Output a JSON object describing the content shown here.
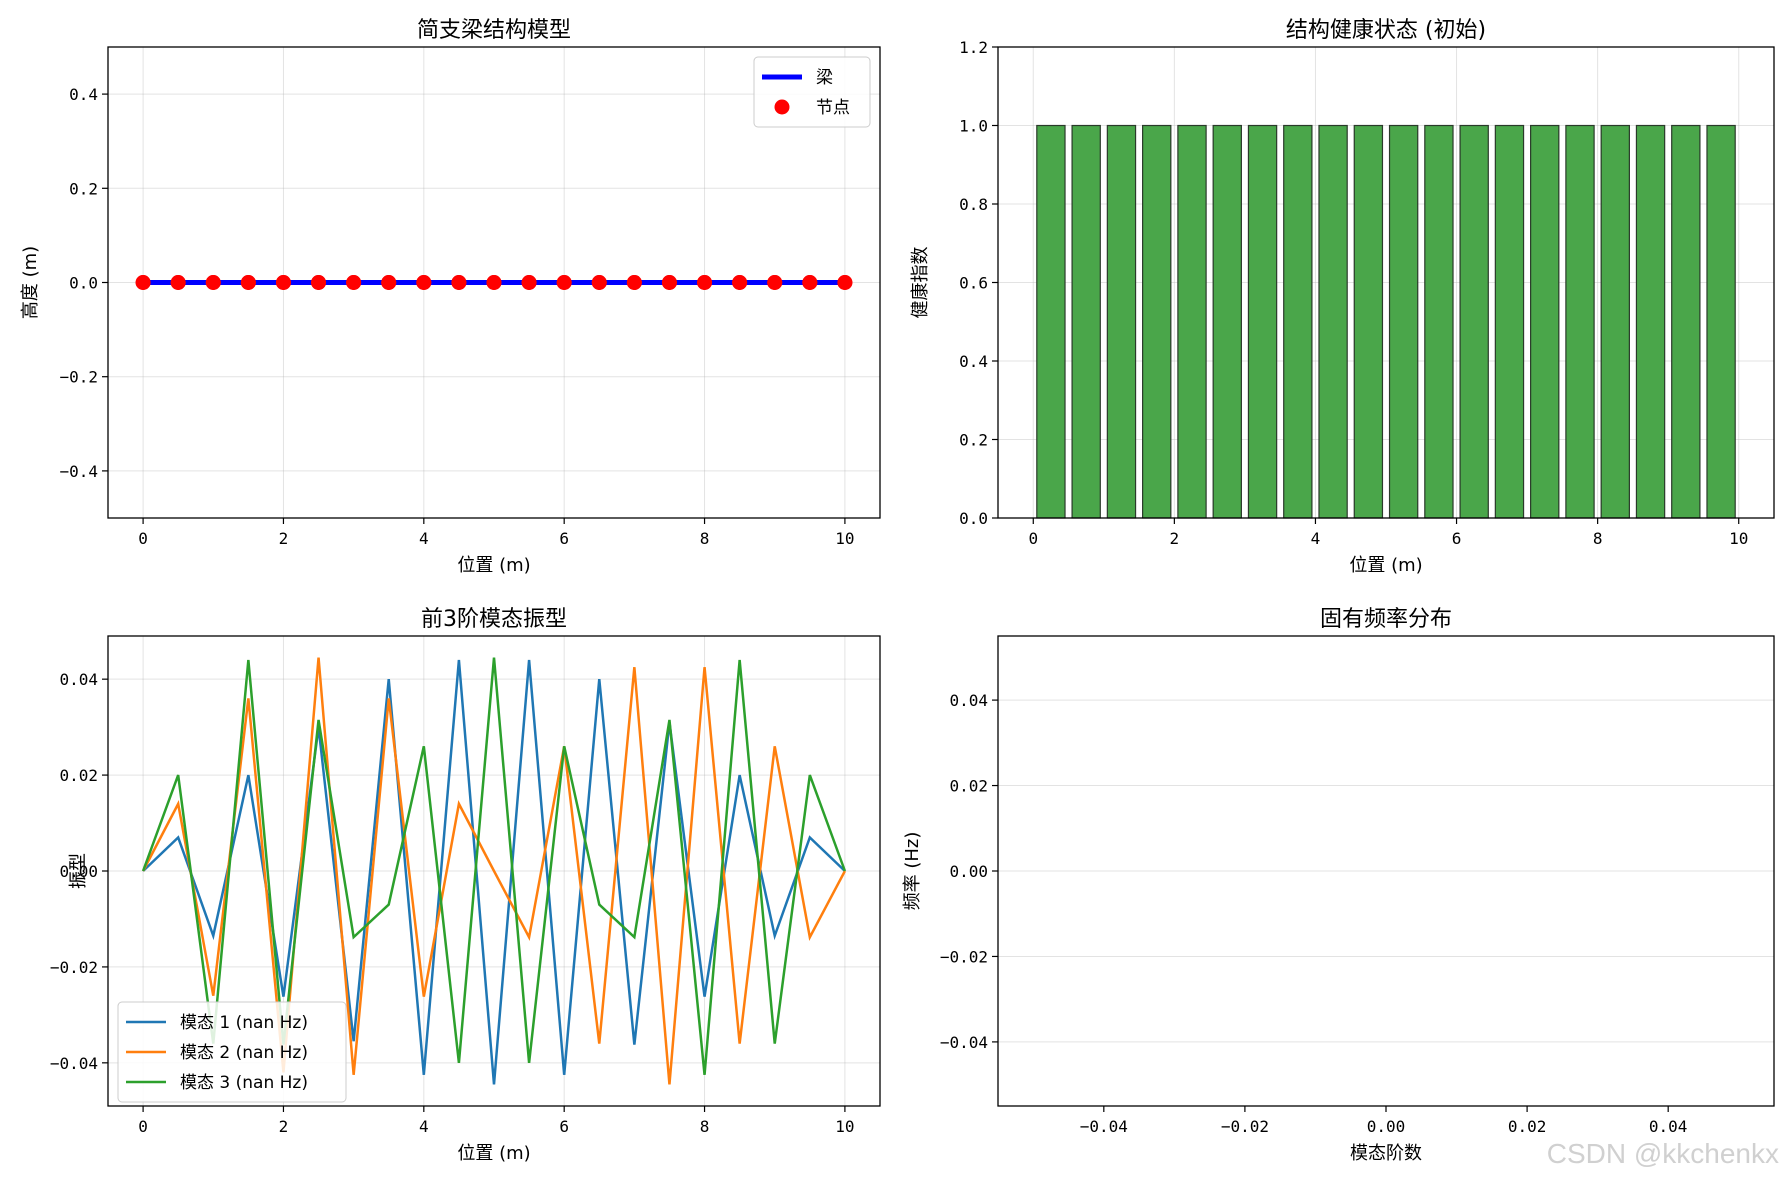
{
  "chart_data": [
    {
      "type": "line",
      "title": "简支梁结构模型",
      "xlabel": "位置 (m)",
      "ylabel": "高度 (m)",
      "xlim": [
        -0.5,
        10.5
      ],
      "ylim": [
        -0.5,
        0.5
      ],
      "xticks": [
        0,
        2,
        4,
        6,
        8,
        10
      ],
      "xtick_labels": [
        "0",
        "2",
        "4",
        "6",
        "8",
        "10"
      ],
      "yticks": [
        -0.4,
        -0.2,
        0.0,
        0.2,
        0.4
      ],
      "ytick_labels": [
        "−0.4",
        "−0.2",
        "0.0",
        "0.2",
        "0.4"
      ],
      "grid": true,
      "legend": "top-right",
      "series": [
        {
          "name": "梁",
          "kind": "line",
          "color": "#0000ff",
          "x": [
            0,
            10
          ],
          "y": [
            0,
            0
          ]
        },
        {
          "name": "节点",
          "kind": "scatter",
          "color": "#ff0000",
          "x": [
            0,
            0.5,
            1,
            1.5,
            2,
            2.5,
            3,
            3.5,
            4,
            4.5,
            5,
            5.5,
            6,
            6.5,
            7,
            7.5,
            8,
            8.5,
            9,
            9.5,
            10
          ],
          "y": [
            0,
            0,
            0,
            0,
            0,
            0,
            0,
            0,
            0,
            0,
            0,
            0,
            0,
            0,
            0,
            0,
            0,
            0,
            0,
            0,
            0
          ]
        }
      ]
    },
    {
      "type": "bar",
      "title": "结构健康状态 (初始)",
      "xlabel": "位置 (m)",
      "ylabel": "健康指数",
      "xlim": [
        -0.5,
        10.5
      ],
      "ylim": [
        0,
        1.2
      ],
      "xticks": [
        0,
        2,
        4,
        6,
        8,
        10
      ],
      "xtick_labels": [
        "0",
        "2",
        "4",
        "6",
        "8",
        "10"
      ],
      "yticks": [
        0.0,
        0.2,
        0.4,
        0.6,
        0.8,
        1.0,
        1.2
      ],
      "ytick_labels": [
        "0.0",
        "0.2",
        "0.4",
        "0.6",
        "0.8",
        "1.0",
        "1.2"
      ],
      "grid": true,
      "bar_color": "#4aa64a",
      "x": [
        0.25,
        0.75,
        1.25,
        1.75,
        2.25,
        2.75,
        3.25,
        3.75,
        4.25,
        4.75,
        5.25,
        5.75,
        6.25,
        6.75,
        7.25,
        7.75,
        8.25,
        8.75,
        9.25,
        9.75
      ],
      "values": [
        1,
        1,
        1,
        1,
        1,
        1,
        1,
        1,
        1,
        1,
        1,
        1,
        1,
        1,
        1,
        1,
        1,
        1,
        1,
        1
      ]
    },
    {
      "type": "line",
      "title": "前3阶模态振型",
      "xlabel": "位置 (m)",
      "ylabel": "振型",
      "xlim": [
        -0.5,
        10.5
      ],
      "ylim": [
        -0.049,
        0.049
      ],
      "xticks": [
        0,
        2,
        4,
        6,
        8,
        10
      ],
      "xtick_labels": [
        "0",
        "2",
        "4",
        "6",
        "8",
        "10"
      ],
      "yticks": [
        -0.04,
        -0.02,
        0.0,
        0.02,
        0.04
      ],
      "ytick_labels": [
        "−0.04",
        "−0.02",
        "0.00",
        "0.02",
        "0.04"
      ],
      "grid": true,
      "legend": "bottom-left",
      "x": [
        0,
        0.5,
        1,
        1.5,
        2,
        2.5,
        3,
        3.5,
        4,
        4.5,
        5,
        5.5,
        6,
        6.5,
        7,
        7.5,
        8,
        8.5,
        9,
        9.5,
        10
      ],
      "series": [
        {
          "name": "模态 1 (nan Hz)",
          "color": "#1f77b4",
          "values": [
            0,
            0.007,
            -0.0135,
            0.02,
            -0.0262,
            0.03,
            -0.0355,
            0.04,
            -0.0425,
            0.044,
            -0.0445,
            0.044,
            -0.0425,
            0.04,
            -0.0362,
            0.031,
            -0.0262,
            0.02,
            -0.0135,
            0.007,
            0
          ]
        },
        {
          "name": "模态 2 (nan Hz)",
          "color": "#ff7f0e",
          "values": [
            0,
            0.014,
            -0.026,
            0.036,
            -0.042,
            0.0445,
            -0.0425,
            0.036,
            -0.0262,
            0.014,
            0,
            -0.0138,
            0.026,
            -0.036,
            0.0425,
            -0.0445,
            0.0425,
            -0.036,
            0.026,
            -0.0138,
            0
          ]
        },
        {
          "name": "模态 3 (nan Hz)",
          "color": "#2ca02c",
          "values": [
            0,
            0.02,
            -0.036,
            0.044,
            -0.0362,
            0.0315,
            -0.0138,
            -0.007,
            0.026,
            -0.04,
            0.0445,
            -0.04,
            0.026,
            -0.007,
            -0.0138,
            0.0315,
            -0.0425,
            0.044,
            -0.036,
            0.02,
            0
          ]
        }
      ]
    },
    {
      "type": "bar",
      "title": "固有频率分布",
      "xlabel": "模态阶数",
      "ylabel": "频率 (Hz)",
      "xlim": [
        -0.055,
        0.055
      ],
      "ylim": [
        -0.055,
        0.055
      ],
      "xticks": [
        -0.04,
        -0.02,
        0.0,
        0.02,
        0.04
      ],
      "xtick_labels": [
        "−0.04",
        "−0.02",
        "0.00",
        "0.02",
        "0.04"
      ],
      "yticks": [
        -0.04,
        -0.02,
        0.0,
        0.02,
        0.04
      ],
      "ytick_labels": [
        "−0.04",
        "−0.02",
        "0.00",
        "0.02",
        "0.04"
      ],
      "grid": "y",
      "categories": [],
      "values": []
    }
  ],
  "watermark": "CSDN @kkchenkx"
}
